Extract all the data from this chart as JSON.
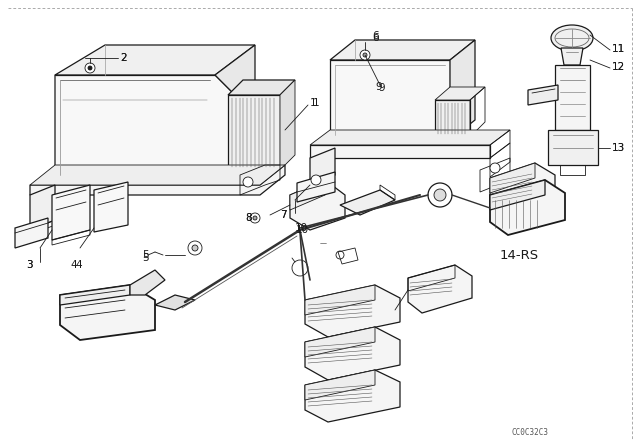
{
  "background_color": "#ffffff",
  "line_color": "#1a1a1a",
  "figsize": [
    6.4,
    4.48
  ],
  "dpi": 100,
  "watermark": "CC0C32C3",
  "annotation_14RS": [
    4.98,
    2.52
  ],
  "border_dash": "--"
}
